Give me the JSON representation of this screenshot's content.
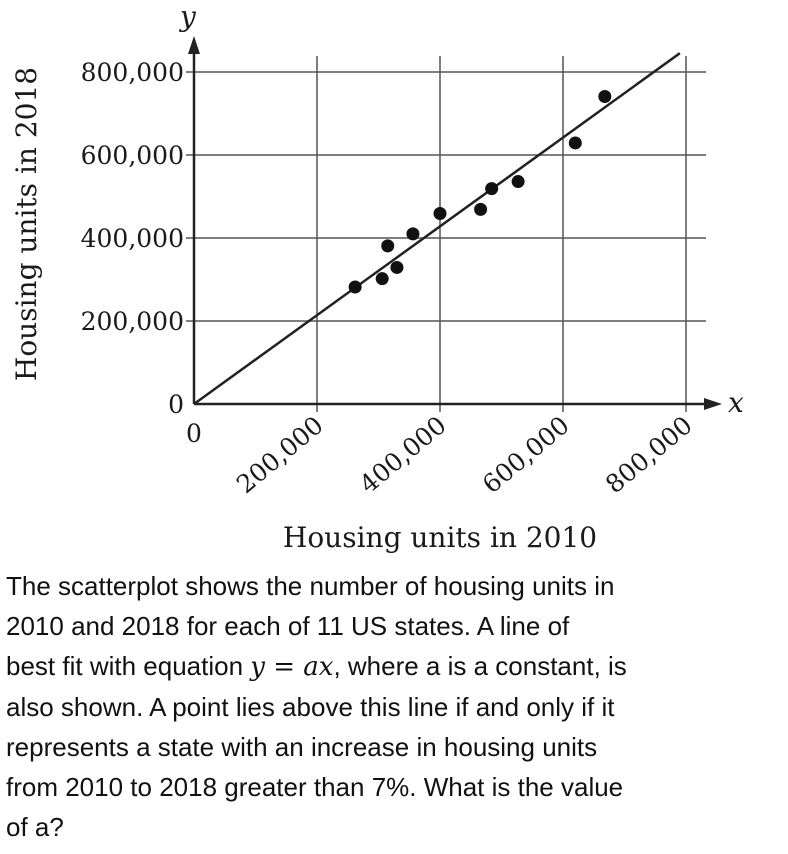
{
  "chart_data": {
    "type": "scatter",
    "xlabel": "Housing units in 2010",
    "ylabel": "Housing units in 2018",
    "x_axis_var": "x",
    "y_axis_var": "y",
    "xlim": [
      0,
      800000
    ],
    "ylim": [
      0,
      800000
    ],
    "x_ticks": [
      0,
      200000,
      400000,
      600000,
      800000
    ],
    "x_tick_labels": [
      "0",
      "200,000",
      "400,000",
      "600,000",
      "800,000"
    ],
    "y_ticks": [
      0,
      200000,
      400000,
      600000,
      800000
    ],
    "y_tick_labels": [
      "0",
      "200,000",
      "400,000",
      "600,000",
      "800,000"
    ],
    "grid": true,
    "points": [
      {
        "x": 262000,
        "y": 282000
      },
      {
        "x": 306000,
        "y": 302000
      },
      {
        "x": 315000,
        "y": 381000
      },
      {
        "x": 330000,
        "y": 329000
      },
      {
        "x": 356000,
        "y": 410000
      },
      {
        "x": 400000,
        "y": 459000
      },
      {
        "x": 466000,
        "y": 469000
      },
      {
        "x": 484000,
        "y": 519000
      },
      {
        "x": 527000,
        "y": 536000
      },
      {
        "x": 620000,
        "y": 629000
      },
      {
        "x": 668000,
        "y": 741000
      }
    ],
    "fit_line": {
      "slope": 1.07,
      "x_start": 0,
      "x_end": 790000
    }
  },
  "question": {
    "line1": "The scatterplot shows the number of housing units in",
    "line2": "2010 and 2018 for each of 11 US states. A line of",
    "line3_pre": "best fit with equation ",
    "line3_math": "y = ax",
    "line3_post": ", where a is a constant, is",
    "line4": "also shown. A point lies above this line if and only if it",
    "line5": "represents a state with an increase in housing units",
    "line6": "from 2010 to 2018 greater than 7%. What is the value",
    "line7": "of a?"
  }
}
